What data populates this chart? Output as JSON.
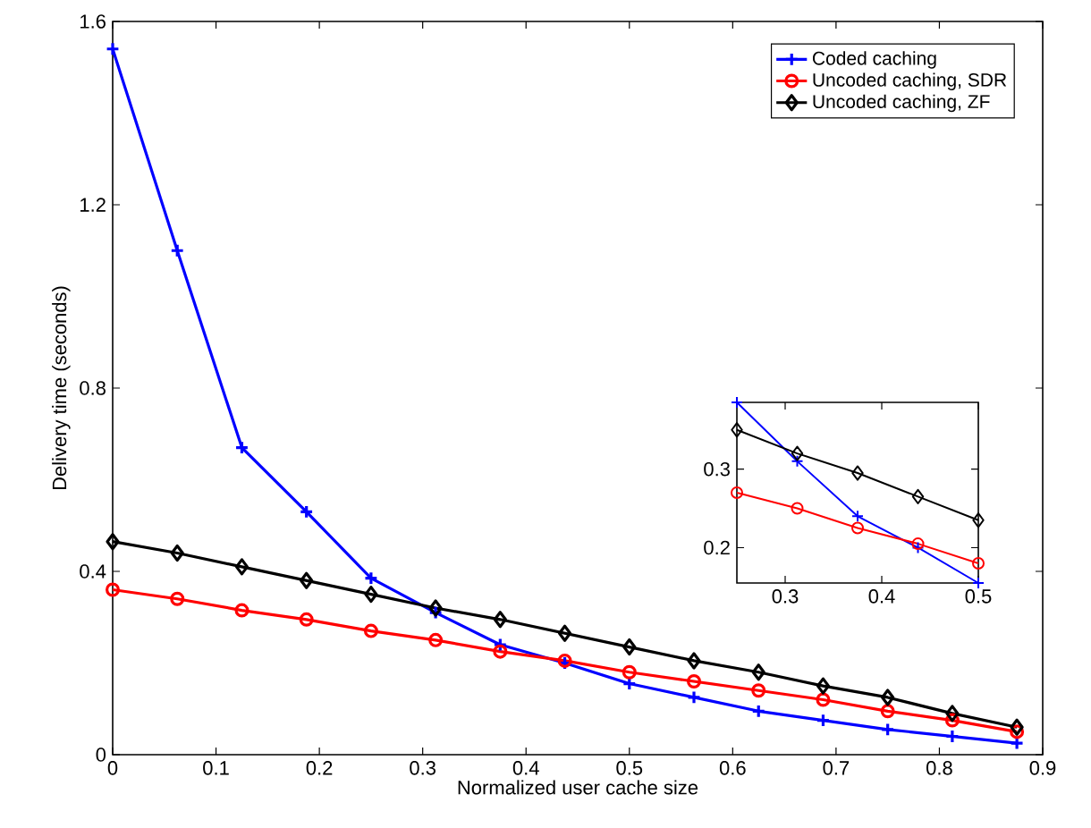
{
  "chart_data": [
    {
      "type": "line",
      "xlabel": "Normalized user cache size",
      "ylabel": "Delivery time (seconds)",
      "x": [
        0,
        0.0625,
        0.125,
        0.1875,
        0.25,
        0.3125,
        0.375,
        0.4375,
        0.5,
        0.5625,
        0.625,
        0.6875,
        0.75,
        0.8125,
        0.875
      ],
      "xlim": [
        0,
        0.9
      ],
      "ylim": [
        0,
        1.6
      ],
      "xticks": [
        0,
        0.1,
        0.2,
        0.3,
        0.4,
        0.5,
        0.6,
        0.7,
        0.8,
        0.9
      ],
      "yticks": [
        0,
        0.4,
        0.8,
        1.2,
        1.6
      ],
      "legend": "top right",
      "series": [
        {
          "name": "Coded caching",
          "color": "#0000ff",
          "marker": "cross",
          "values": [
            1.54,
            1.1,
            0.67,
            0.53,
            0.385,
            0.31,
            0.24,
            0.2,
            0.155,
            0.125,
            0.095,
            0.075,
            0.055,
            0.04,
            0.025
          ]
        },
        {
          "name": "Uncoded caching, SDR",
          "color": "#ff0000",
          "marker": "circle",
          "values": [
            0.36,
            0.34,
            0.315,
            0.295,
            0.27,
            0.25,
            0.225,
            0.205,
            0.18,
            0.16,
            0.14,
            0.12,
            0.095,
            0.075,
            0.05
          ]
        },
        {
          "name": "Uncoded caching, ZF",
          "color": "#000000",
          "marker": "diamond",
          "values": [
            0.465,
            0.44,
            0.41,
            0.38,
            0.35,
            0.32,
            0.295,
            0.265,
            0.235,
            0.205,
            0.18,
            0.15,
            0.125,
            0.09,
            0.06
          ]
        }
      ]
    },
    {
      "type": "line",
      "x": [
        0.25,
        0.3125,
        0.375,
        0.4375,
        0.5
      ],
      "xlim": [
        0.25,
        0.5
      ],
      "ylim": [
        0.155,
        0.385
      ],
      "xticks": [
        0.3,
        0.4,
        0.5
      ],
      "yticks": [
        0.2,
        0.3
      ],
      "series": [
        {
          "color": "#0000ff",
          "marker": "cross",
          "values": [
            0.385,
            0.31,
            0.24,
            0.2,
            0.155
          ]
        },
        {
          "color": "#ff0000",
          "marker": "circle",
          "values": [
            0.27,
            0.25,
            0.225,
            0.205,
            0.18
          ]
        },
        {
          "color": "#000000",
          "marker": "diamond",
          "values": [
            0.35,
            0.32,
            0.295,
            0.265,
            0.235
          ]
        }
      ]
    }
  ]
}
